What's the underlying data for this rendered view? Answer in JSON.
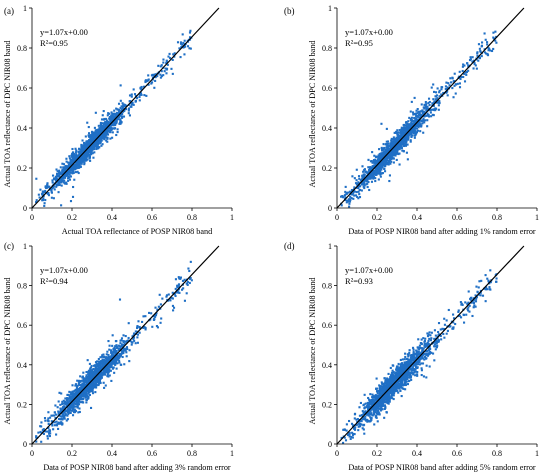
{
  "figure": {
    "panel_tags": [
      "(a)",
      "(b)",
      "(c)",
      "(d)"
    ]
  },
  "colors": {
    "points": "#1f6fc5",
    "fit_line": "#000000",
    "axis": "#000000"
  },
  "chart_data": [
    {
      "type": "scatter",
      "panel": "(a)",
      "xlabel": "Actual TOA reflectance of POSP NIR08 band",
      "ylabel": "Actual TOA reflectance of DPC NIR08 band",
      "xlim": [
        0,
        1
      ],
      "ylim": [
        0,
        1
      ],
      "xticks": [
        "0",
        "0.2",
        "0.4",
        "0.6",
        "0.8",
        "1"
      ],
      "yticks": [
        "0",
        "0.2",
        "0.4",
        "0.6",
        "0.8",
        "1"
      ],
      "equation": "y=1.07x+0.00",
      "r2_label": "R²=0.95",
      "fit": {
        "slope": 1.07,
        "intercept": 0.0
      },
      "r2": 0.95,
      "noise": 0.025,
      "x_range": [
        0.02,
        0.8
      ],
      "grid": false
    },
    {
      "type": "scatter",
      "panel": "(b)",
      "xlabel": "Data of POSP NIR08 band after adding 1% random error",
      "ylabel": "Actual TOA reflectance of DPC NIR08 band",
      "xlim": [
        0,
        1
      ],
      "ylim": [
        0,
        1
      ],
      "xticks": [
        "0",
        "0.2",
        "0.4",
        "0.6",
        "0.8",
        "1"
      ],
      "yticks": [
        "0",
        "0.2",
        "0.4",
        "0.6",
        "0.8",
        "1"
      ],
      "equation": "y=1.07x+0.00",
      "r2_label": "R²=0.95",
      "fit": {
        "slope": 1.07,
        "intercept": 0.0
      },
      "r2": 0.95,
      "noise": 0.026,
      "x_range": [
        0.02,
        0.8
      ],
      "grid": false
    },
    {
      "type": "scatter",
      "panel": "(c)",
      "xlabel": "Data of POSP NIR08 band after adding 3% random error",
      "ylabel": "Actual TOA reflectance of DPC NIR08 band",
      "xlim": [
        0,
        1
      ],
      "ylim": [
        0,
        1
      ],
      "xticks": [
        "0",
        "0.2",
        "0.4",
        "0.6",
        "0.8",
        "1"
      ],
      "yticks": [
        "0",
        "0.2",
        "0.4",
        "0.6",
        "0.8",
        "1"
      ],
      "equation": "y=1.07x+0.00",
      "r2_label": "R²=0.94",
      "fit": {
        "slope": 1.07,
        "intercept": 0.0
      },
      "r2": 0.94,
      "noise": 0.03,
      "x_range": [
        0.02,
        0.8
      ],
      "grid": false
    },
    {
      "type": "scatter",
      "panel": "(d)",
      "xlabel": "Data of POSP NIR08 band after adding 5% random error",
      "ylabel": "Actual TOA reflectance of DPC NIR08 band",
      "xlim": [
        0,
        1
      ],
      "ylim": [
        0,
        1
      ],
      "xticks": [
        "0",
        "0.2",
        "0.4",
        "0.6",
        "0.8",
        "1"
      ],
      "yticks": [
        "0",
        "0.2",
        "0.4",
        "0.6",
        "0.8",
        "1"
      ],
      "equation": "y=1.07x+0.00",
      "r2_label": "R²=0.93",
      "fit": {
        "slope": 1.07,
        "intercept": 0.0
      },
      "r2": 0.93,
      "noise": 0.034,
      "x_range": [
        0.02,
        0.8
      ],
      "grid": false
    }
  ]
}
